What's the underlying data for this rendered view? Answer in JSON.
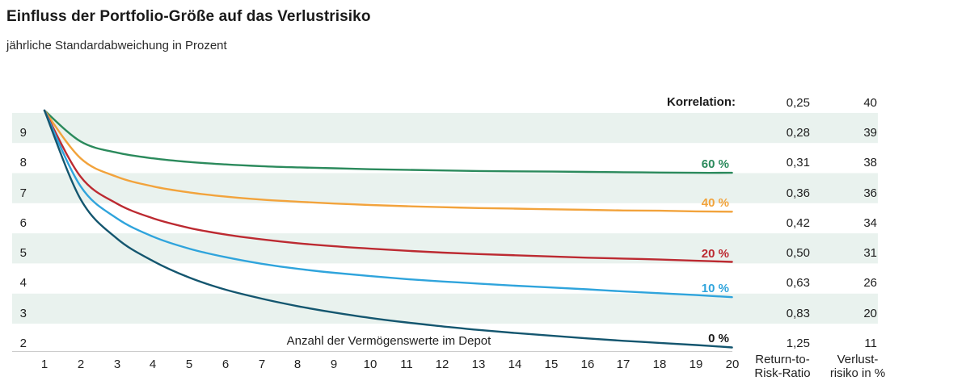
{
  "chart_data": {
    "type": "line",
    "title": "Einfluss der Portfolio-Größe auf das Verlustrisiko",
    "subtitle": "jährliche Standardabweichung in Prozent",
    "xlabel": "Anzahl der Vermögenswerte im Depot",
    "ylabel": "jährliche Standardabweichung in Prozent",
    "legend_note": "Korrelation:",
    "x": [
      1,
      2,
      3,
      4,
      5,
      6,
      7,
      8,
      9,
      10,
      11,
      12,
      13,
      14,
      15,
      16,
      17,
      18,
      19,
      20
    ],
    "xlim": [
      1,
      20
    ],
    "ylim": [
      1.8,
      10.2
    ],
    "y_ticks": [
      "9",
      "8",
      "7",
      "6",
      "5",
      "4",
      "3",
      "2"
    ],
    "x_ticks": [
      "1",
      "2",
      "3",
      "4",
      "5",
      "6",
      "7",
      "8",
      "9",
      "10",
      "11",
      "12",
      "13",
      "14",
      "15",
      "16",
      "17",
      "18",
      "19",
      "20"
    ],
    "grid": "striped-rows",
    "legend_position": "labels-at-line-ends",
    "series": [
      {
        "name": "Korrelation 60 %",
        "label": "60 %",
        "color": "#2B8A5C",
        "values": [
          9.75,
          8.72,
          8.35,
          8.16,
          8.04,
          7.96,
          7.9,
          7.86,
          7.83,
          7.8,
          7.78,
          7.76,
          7.74,
          7.73,
          7.72,
          7.71,
          7.7,
          7.69,
          7.68,
          7.68
        ]
      },
      {
        "name": "Korrelation 40 %",
        "label": "40 %",
        "color": "#F2A33C",
        "values": [
          9.75,
          8.16,
          7.55,
          7.23,
          7.03,
          6.89,
          6.79,
          6.72,
          6.66,
          6.61,
          6.57,
          6.54,
          6.51,
          6.49,
          6.47,
          6.45,
          6.43,
          6.42,
          6.4,
          6.39
        ]
      },
      {
        "name": "Korrelation 20 %",
        "label": "20 %",
        "color": "#BC2A31",
        "values": [
          9.75,
          7.55,
          6.66,
          6.17,
          5.85,
          5.63,
          5.47,
          5.34,
          5.24,
          5.16,
          5.09,
          5.03,
          4.98,
          4.94,
          4.9,
          4.86,
          4.83,
          4.8,
          4.76,
          4.72
        ]
      },
      {
        "name": "Korrelation 10 %",
        "label": "10 %",
        "color": "#2FA4DC",
        "values": [
          9.75,
          7.23,
          6.17,
          5.56,
          5.16,
          4.88,
          4.66,
          4.49,
          4.36,
          4.25,
          4.15,
          4.07,
          4.0,
          3.93,
          3.87,
          3.81,
          3.74,
          3.68,
          3.62,
          3.55
        ]
      },
      {
        "name": "Korrelation 0 %",
        "label": "0 %",
        "color": "#14566F",
        "label_color": "#1A1A1A",
        "values": [
          9.75,
          6.8,
          5.5,
          4.75,
          4.2,
          3.8,
          3.5,
          3.25,
          3.04,
          2.86,
          2.71,
          2.58,
          2.46,
          2.36,
          2.27,
          2.18,
          2.1,
          2.03,
          1.96,
          1.88
        ]
      }
    ],
    "side_table": {
      "rows": [
        {
          "ratio": "0,25",
          "risk": "40"
        },
        {
          "ratio": "0,28",
          "risk": "39"
        },
        {
          "ratio": "0,31",
          "risk": "38"
        },
        {
          "ratio": "0,36",
          "risk": "36"
        },
        {
          "ratio": "0,42",
          "risk": "34"
        },
        {
          "ratio": "0,50",
          "risk": "31"
        },
        {
          "ratio": "0,63",
          "risk": "26"
        },
        {
          "ratio": "0,83",
          "risk": "20"
        },
        {
          "ratio": "1,25",
          "risk": "11"
        }
      ],
      "ratio_footer": [
        "Return-to-",
        "Risk-Ratio"
      ],
      "risk_footer": [
        "Verlust-",
        "risiko in %"
      ]
    },
    "colors": {
      "stripe": "#E9F2EE",
      "axis_line": "#CCCCCC",
      "text": "#1A1A1A"
    }
  }
}
